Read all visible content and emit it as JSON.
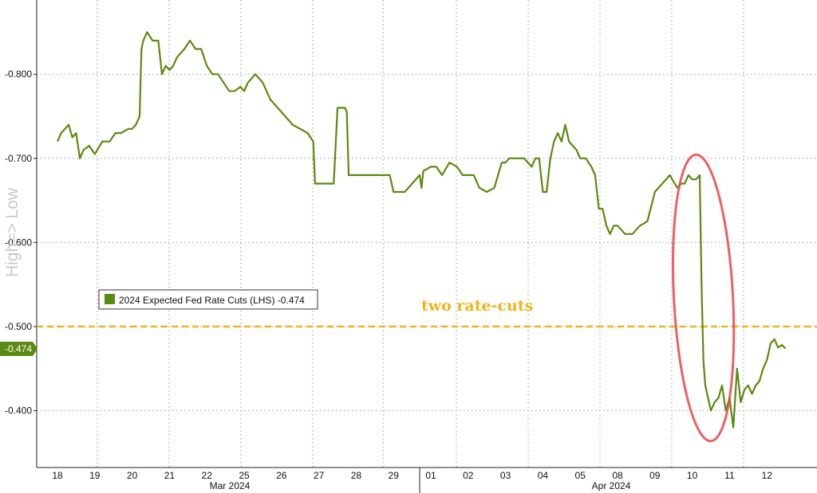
{
  "chart_data": {
    "type": "line",
    "ylabel": "High=> Low",
    "ylim": [
      0.35,
      0.9
    ],
    "y_inverted": true,
    "y_ticks": [
      "-0.800",
      "-0.700",
      "-0.600",
      "-0.500",
      "-0.400"
    ],
    "y_tick_values": [
      0.8,
      0.7,
      0.6,
      0.5,
      0.4
    ],
    "x_ticks": [
      "18",
      "19",
      "20",
      "21",
      "22",
      "25",
      "26",
      "27",
      "28",
      "29",
      "01",
      "02",
      "03",
      "04",
      "05",
      "08",
      "09",
      "10",
      "11",
      "12"
    ],
    "month_labels": [
      {
        "label": "Mar 2024",
        "after_tick": "22"
      },
      {
        "label": "Apr 2024",
        "after_tick": "04"
      }
    ],
    "grid": true,
    "legend": {
      "text": "2024 Expected Fed Rate Cuts (LHS) -0.474",
      "position": "middle-left"
    },
    "last_value_label": "-0.474",
    "reference_line": {
      "y": 0.5,
      "label": "two rate-cuts",
      "color": "#f0b41c"
    },
    "highlight": {
      "shape": "ellipse",
      "color": "#e8474a",
      "around_x": 17.3
    },
    "series": [
      {
        "color": "#5a8a10",
        "x": [
          0.0,
          0.1,
          0.2,
          0.3,
          0.4,
          0.5,
          0.6,
          0.7,
          0.85,
          1.0,
          1.2,
          1.4,
          1.55,
          1.7,
          1.9,
          2.0,
          2.1,
          2.2,
          2.25,
          2.3,
          2.4,
          2.55,
          2.7,
          2.8,
          2.9,
          3.0,
          3.1,
          3.2,
          3.3,
          3.4,
          3.55,
          3.7,
          3.85,
          4.0,
          4.15,
          4.3,
          4.45,
          4.6,
          4.75,
          4.9,
          5.0,
          5.1,
          5.3,
          5.5,
          5.7,
          5.9,
          6.1,
          6.3,
          6.5,
          6.7,
          6.85,
          6.9,
          7.0,
          7.1,
          7.25,
          7.4,
          7.5,
          7.6,
          7.7,
          7.75,
          7.8,
          8.0,
          8.5,
          8.9,
          9.0,
          9.3,
          9.5,
          9.7,
          9.75,
          9.8,
          10.0,
          10.15,
          10.3,
          10.5,
          10.7,
          10.85,
          11.0,
          11.15,
          11.3,
          11.5,
          11.7,
          11.8,
          11.9,
          12.0,
          12.1,
          12.2,
          12.4,
          12.5,
          12.6,
          12.7,
          12.8,
          12.9,
          13.0,
          13.1,
          13.2,
          13.3,
          13.4,
          13.5,
          13.6,
          13.7,
          13.8,
          13.9,
          14.0,
          14.15,
          14.3,
          14.4,
          14.5,
          14.6,
          14.7,
          14.8,
          14.9,
          15.0,
          15.2,
          15.4,
          15.6,
          15.8,
          16.0,
          16.2,
          16.4,
          16.6,
          16.7,
          16.8,
          16.9,
          17.0,
          17.1,
          17.2,
          17.25,
          17.3,
          17.35,
          17.4,
          17.5,
          17.6,
          17.7,
          17.8,
          17.9,
          18.0,
          18.1,
          18.2,
          18.3,
          18.4,
          18.5,
          18.6,
          18.7,
          18.8,
          18.9,
          19.0,
          19.1,
          19.2,
          19.3,
          19.4,
          19.5
        ],
        "values": [
          0.72,
          0.73,
          0.735,
          0.74,
          0.725,
          0.73,
          0.7,
          0.71,
          0.715,
          0.705,
          0.72,
          0.72,
          0.73,
          0.73,
          0.735,
          0.735,
          0.74,
          0.75,
          0.83,
          0.84,
          0.85,
          0.84,
          0.84,
          0.8,
          0.81,
          0.805,
          0.81,
          0.82,
          0.825,
          0.83,
          0.84,
          0.83,
          0.83,
          0.81,
          0.8,
          0.8,
          0.79,
          0.78,
          0.78,
          0.785,
          0.78,
          0.79,
          0.8,
          0.79,
          0.77,
          0.76,
          0.75,
          0.74,
          0.735,
          0.73,
          0.72,
          0.67,
          0.67,
          0.67,
          0.67,
          0.67,
          0.76,
          0.76,
          0.76,
          0.755,
          0.68,
          0.68,
          0.68,
          0.68,
          0.66,
          0.66,
          0.67,
          0.68,
          0.665,
          0.685,
          0.69,
          0.69,
          0.68,
          0.695,
          0.69,
          0.68,
          0.68,
          0.68,
          0.665,
          0.66,
          0.665,
          0.68,
          0.695,
          0.695,
          0.7,
          0.7,
          0.7,
          0.7,
          0.695,
          0.69,
          0.7,
          0.7,
          0.66,
          0.66,
          0.7,
          0.72,
          0.73,
          0.72,
          0.74,
          0.72,
          0.715,
          0.71,
          0.7,
          0.7,
          0.69,
          0.68,
          0.64,
          0.64,
          0.62,
          0.61,
          0.62,
          0.62,
          0.61,
          0.61,
          0.62,
          0.625,
          0.66,
          0.67,
          0.68,
          0.665,
          0.67,
          0.67,
          0.68,
          0.675,
          0.675,
          0.68,
          0.55,
          0.46,
          0.43,
          0.42,
          0.4,
          0.41,
          0.415,
          0.43,
          0.4,
          0.415,
          0.38,
          0.45,
          0.41,
          0.425,
          0.43,
          0.42,
          0.43,
          0.435,
          0.45,
          0.46,
          0.48,
          0.485,
          0.475,
          0.478,
          0.474
        ]
      }
    ]
  }
}
